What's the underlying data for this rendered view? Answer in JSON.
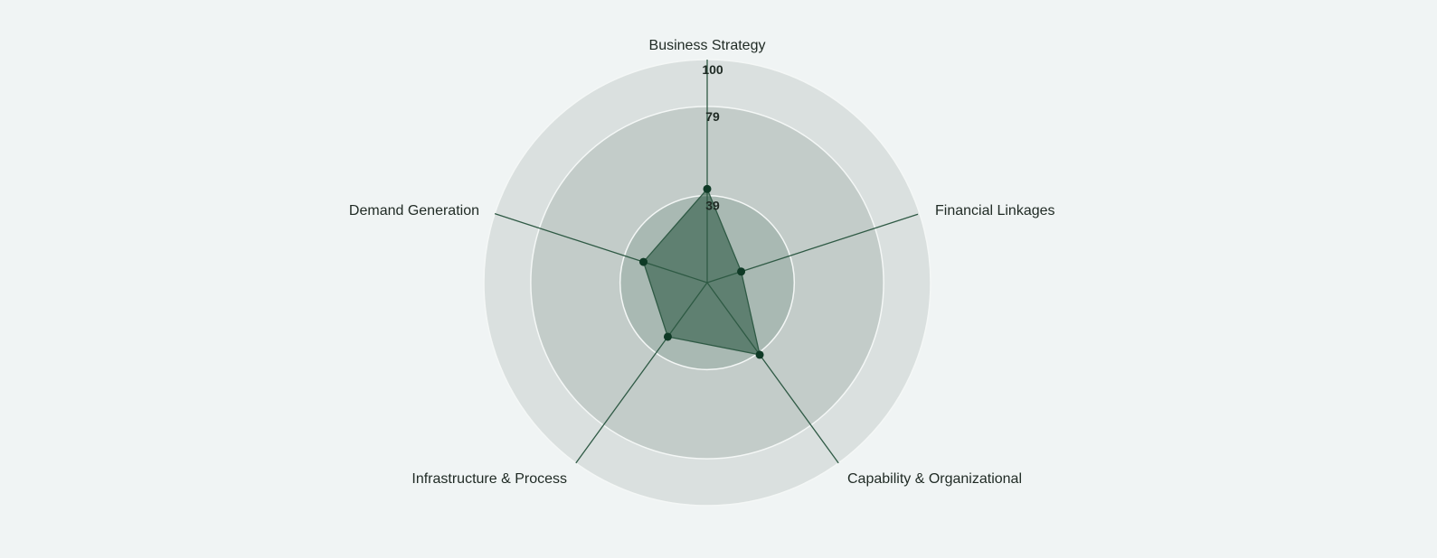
{
  "colors": {
    "background": "#f0f4f4",
    "ring_outer": "#dae0df",
    "ring_middle": "#c3ccc9",
    "ring_inner": "#a9b9b3",
    "ring_border": "#f4f7f6",
    "axis_line": "#2f5a45",
    "series_fill": "#2f5a45",
    "series_stroke": "#2f5a45",
    "point_fill": "#0f3a26"
  },
  "chart_data": {
    "type": "radar",
    "title": "",
    "axes": [
      "Business Strategy",
      "Financial Linkages",
      "Capability & Organizational",
      "Infrastructure & Process",
      "Demand Generation"
    ],
    "rings": [
      39,
      79,
      100
    ],
    "tick_labels": [
      "39",
      "79",
      "100"
    ],
    "range": [
      0,
      100
    ],
    "series": [
      {
        "values": [
          42,
          16,
          40,
          30,
          30
        ]
      }
    ]
  }
}
